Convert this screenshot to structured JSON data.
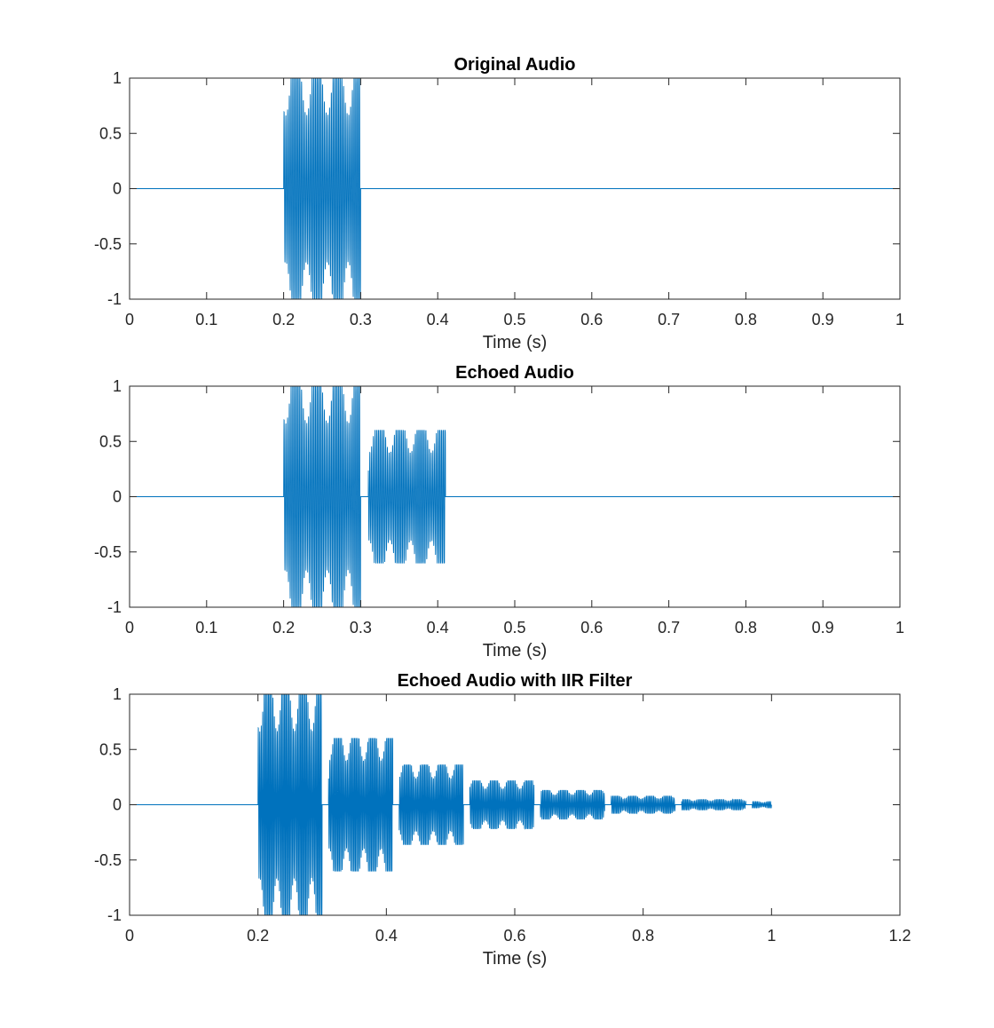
{
  "chart_data": [
    {
      "type": "line",
      "title": "Original Audio",
      "xlabel": "Time (s)",
      "ylabel": "",
      "xlim": [
        0,
        1
      ],
      "ylim": [
        -1,
        1
      ],
      "xticks": [
        0,
        0.1,
        0.2,
        0.3,
        0.4,
        0.5,
        0.6,
        0.7,
        0.8,
        0.9,
        1
      ],
      "xtick_labels": [
        "0",
        "0.1",
        "0.2",
        "0.3",
        "0.4",
        "0.5",
        "0.6",
        "0.7",
        "0.8",
        "0.9",
        "1"
      ],
      "yticks": [
        -1,
        -0.5,
        0,
        0.5,
        1
      ],
      "ytick_labels": [
        "-1",
        "-0.5",
        "0",
        "0.5",
        "1"
      ],
      "grid": false,
      "color": "#0072BD",
      "signal_end": 1.0,
      "bursts": [
        {
          "start": 0.2,
          "end": 0.3,
          "amplitude": 1.0
        }
      ]
    },
    {
      "type": "line",
      "title": "Echoed Audio",
      "xlabel": "Time (s)",
      "ylabel": "",
      "xlim": [
        0,
        1
      ],
      "ylim": [
        -1,
        1
      ],
      "xticks": [
        0,
        0.1,
        0.2,
        0.3,
        0.4,
        0.5,
        0.6,
        0.7,
        0.8,
        0.9,
        1
      ],
      "xtick_labels": [
        "0",
        "0.1",
        "0.2",
        "0.3",
        "0.4",
        "0.5",
        "0.6",
        "0.7",
        "0.8",
        "0.9",
        "1"
      ],
      "yticks": [
        -1,
        -0.5,
        0,
        0.5,
        1
      ],
      "ytick_labels": [
        "-1",
        "-0.5",
        "0",
        "0.5",
        "1"
      ],
      "grid": false,
      "color": "#0072BD",
      "signal_end": 1.0,
      "bursts": [
        {
          "start": 0.2,
          "end": 0.3,
          "amplitude": 1.0
        },
        {
          "start": 0.31,
          "end": 0.41,
          "amplitude": 0.6
        }
      ]
    },
    {
      "type": "line",
      "title": "Echoed Audio with IIR Filter",
      "xlabel": "Time (s)",
      "ylabel": "",
      "xlim": [
        0,
        1.2
      ],
      "ylim": [
        -1,
        1
      ],
      "xticks": [
        0,
        0.2,
        0.4,
        0.6,
        0.8,
        1,
        1.2
      ],
      "xtick_labels": [
        "0",
        "0.2",
        "0.4",
        "0.6",
        "0.8",
        "1",
        "1.2"
      ],
      "yticks": [
        -1,
        -0.5,
        0,
        0.5,
        1
      ],
      "ytick_labels": [
        "-1",
        "-0.5",
        "0",
        "0.5",
        "1"
      ],
      "grid": false,
      "color": "#0072BD",
      "signal_end": 1.0,
      "bursts": [
        {
          "start": 0.2,
          "end": 0.3,
          "amplitude": 1.0
        },
        {
          "start": 0.31,
          "end": 0.41,
          "amplitude": 0.6
        },
        {
          "start": 0.42,
          "end": 0.52,
          "amplitude": 0.36
        },
        {
          "start": 0.53,
          "end": 0.63,
          "amplitude": 0.216
        },
        {
          "start": 0.64,
          "end": 0.74,
          "amplitude": 0.13
        },
        {
          "start": 0.75,
          "end": 0.85,
          "amplitude": 0.078
        },
        {
          "start": 0.86,
          "end": 0.96,
          "amplitude": 0.047
        },
        {
          "start": 0.97,
          "end": 1.0,
          "amplitude": 0.028
        }
      ]
    }
  ]
}
